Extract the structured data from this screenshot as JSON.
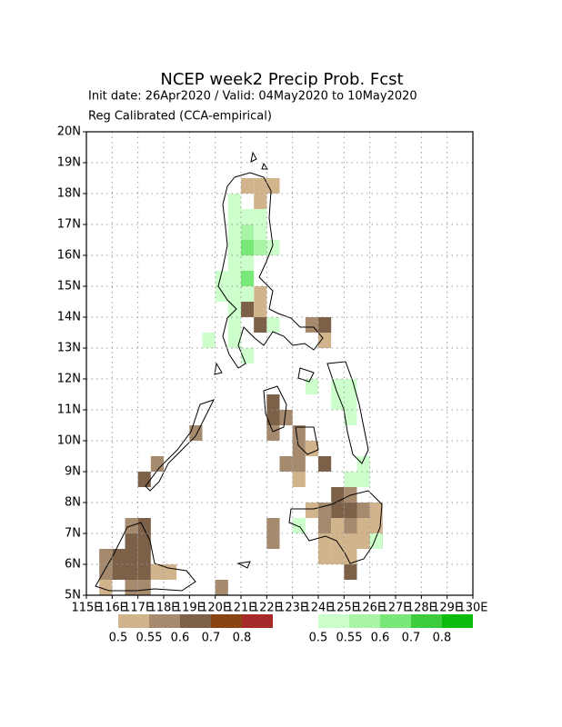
{
  "chart_data": {
    "type": "grid-map",
    "title": "NCEP week2 Precip Prob. Fcst",
    "subtitle": "Init date: 26Apr2020 / Valid: 04May2020 to 10May2020",
    "subtitle2": "Reg Calibrated (CCA-empirical)",
    "xlim": [
      115,
      130
    ],
    "ylim": [
      5,
      20
    ],
    "grid": true,
    "cell_size": 0.5,
    "xticks": [
      {
        "value": 115,
        "label": "115E"
      },
      {
        "value": 116,
        "label": "116E"
      },
      {
        "value": 117,
        "label": "117E"
      },
      {
        "value": 118,
        "label": "118E"
      },
      {
        "value": 119,
        "label": "119E"
      },
      {
        "value": 120,
        "label": "120E"
      },
      {
        "value": 121,
        "label": "121E"
      },
      {
        "value": 122,
        "label": "122E"
      },
      {
        "value": 123,
        "label": "123E"
      },
      {
        "value": 124,
        "label": "124E"
      },
      {
        "value": 125,
        "label": "125E"
      },
      {
        "value": 126,
        "label": "126E"
      },
      {
        "value": 127,
        "label": "127E"
      },
      {
        "value": 128,
        "label": "128E"
      },
      {
        "value": 129,
        "label": "129E"
      },
      {
        "value": 130,
        "label": "130E"
      }
    ],
    "yticks": [
      {
        "value": 5,
        "label": "5N"
      },
      {
        "value": 6,
        "label": "6N"
      },
      {
        "value": 7,
        "label": "7N"
      },
      {
        "value": 8,
        "label": "8N"
      },
      {
        "value": 9,
        "label": "9N"
      },
      {
        "value": 10,
        "label": "10N"
      },
      {
        "value": 11,
        "label": "11N"
      },
      {
        "value": 12,
        "label": "12N"
      },
      {
        "value": 13,
        "label": "13N"
      },
      {
        "value": 14,
        "label": "14N"
      },
      {
        "value": 15,
        "label": "15N"
      },
      {
        "value": 16,
        "label": "16N"
      },
      {
        "value": 17,
        "label": "17N"
      },
      {
        "value": 18,
        "label": "18N"
      },
      {
        "value": 19,
        "label": "19N"
      },
      {
        "value": 20,
        "label": "20N"
      }
    ],
    "below": {
      "levels": [
        0.5,
        0.55,
        0.6,
        0.7,
        0.8
      ],
      "colors": [
        "#d2b48c",
        "#a58a6e",
        "#7d6048",
        "#8b4513",
        "#a52a2a"
      ],
      "cells": [
        [
          121,
          18,
          0.5
        ],
        [
          121.5,
          18,
          0.5
        ],
        [
          122,
          18,
          0.5
        ],
        [
          121.5,
          17.5,
          0.5
        ],
        [
          121.5,
          14.5,
          0.5
        ],
        [
          121,
          14,
          0.6
        ],
        [
          121.5,
          14,
          0.5
        ],
        [
          121.5,
          13.5,
          0.6
        ],
        [
          123.5,
          13.5,
          0.55
        ],
        [
          124,
          13.5,
          0.6
        ],
        [
          124,
          13,
          0.5
        ],
        [
          122,
          11,
          0.6
        ],
        [
          122,
          10.5,
          0.6
        ],
        [
          122.5,
          10.5,
          0.55
        ],
        [
          122,
          10,
          0.55
        ],
        [
          123,
          10,
          0.55
        ],
        [
          123,
          9.5,
          0.55
        ],
        [
          123.5,
          9.5,
          0.5
        ],
        [
          122.5,
          9,
          0.55
        ],
        [
          123,
          9,
          0.55
        ],
        [
          124,
          9,
          0.6
        ],
        [
          123,
          8.5,
          0.5
        ],
        [
          119,
          10,
          0.55
        ],
        [
          117.5,
          9,
          0.55
        ],
        [
          117,
          8.5,
          0.6
        ],
        [
          124.5,
          8,
          0.6
        ],
        [
          125,
          8,
          0.55
        ],
        [
          123.5,
          7.5,
          0.5
        ],
        [
          124,
          7.5,
          0.55
        ],
        [
          124.5,
          7.5,
          0.6
        ],
        [
          125,
          7.5,
          0.6
        ],
        [
          125.5,
          7.5,
          0.55
        ],
        [
          126,
          7.5,
          0.5
        ],
        [
          122,
          7,
          0.55
        ],
        [
          124,
          7,
          0.55
        ],
        [
          124.5,
          7,
          0.5
        ],
        [
          125,
          7,
          0.55
        ],
        [
          125.5,
          7,
          0.5
        ],
        [
          126,
          7,
          0.5
        ],
        [
          122,
          6.5,
          0.55
        ],
        [
          124,
          6.5,
          0.5
        ],
        [
          124.5,
          6.5,
          0.5
        ],
        [
          125,
          6.5,
          0.5
        ],
        [
          125.5,
          6.5,
          0.5
        ],
        [
          126,
          6.5,
          0.6
        ],
        [
          124,
          6,
          0.5
        ],
        [
          124.5,
          6,
          0.5
        ],
        [
          125,
          6,
          0.5
        ],
        [
          125,
          5.5,
          0.6
        ],
        [
          116.5,
          7,
          0.55
        ],
        [
          117,
          7,
          0.6
        ],
        [
          116.5,
          6.5,
          0.6
        ],
        [
          117,
          6.5,
          0.6
        ],
        [
          115.5,
          6,
          0.55
        ],
        [
          116,
          6,
          0.6
        ],
        [
          116.5,
          6,
          0.6
        ],
        [
          117,
          6,
          0.6
        ],
        [
          115.5,
          5.5,
          0.55
        ],
        [
          116,
          5.5,
          0.6
        ],
        [
          116.5,
          5.5,
          0.6
        ],
        [
          117,
          5.5,
          0.6
        ],
        [
          117.5,
          5.5,
          0.5
        ],
        [
          118,
          5.5,
          0.5
        ],
        [
          115.5,
          5,
          0.5
        ],
        [
          116.5,
          5,
          0.55
        ],
        [
          117,
          5,
          0.55
        ],
        [
          120,
          5,
          0.55
        ]
      ]
    },
    "above": {
      "levels": [
        0.5,
        0.55,
        0.6,
        0.7,
        0.8
      ],
      "colors": [
        "#ccffcc",
        "#a8f5a8",
        "#78e878",
        "#3ccc3c",
        "#0cbc0c"
      ],
      "cells": [
        [
          120.5,
          17.5,
          0.5
        ],
        [
          120.5,
          17,
          0.5
        ],
        [
          121,
          17,
          0.5
        ],
        [
          121.5,
          17,
          0.5
        ],
        [
          120.5,
          16.5,
          0.5
        ],
        [
          121,
          16.5,
          0.55
        ],
        [
          121.5,
          16.5,
          0.5
        ],
        [
          120.5,
          16,
          0.5
        ],
        [
          121,
          16,
          0.6
        ],
        [
          121.5,
          16,
          0.55
        ],
        [
          122,
          16,
          0.5
        ],
        [
          120.5,
          15.5,
          0.5
        ],
        [
          121,
          15.5,
          0.5
        ],
        [
          120,
          15,
          0.5
        ],
        [
          120.5,
          15,
          0.5
        ],
        [
          121,
          15,
          0.6
        ],
        [
          120,
          14.5,
          0.5
        ],
        [
          120.5,
          14.5,
          0.5
        ],
        [
          121,
          14.5,
          0.5
        ],
        [
          120.5,
          14,
          0.5
        ],
        [
          121,
          14.5,
          0.5
        ],
        [
          120.5,
          13.5,
          0.5
        ],
        [
          122,
          13.5,
          0.5
        ],
        [
          119.5,
          13,
          0.5
        ],
        [
          120.5,
          13,
          0.5
        ],
        [
          121,
          12.5,
          0.5
        ],
        [
          123.5,
          11.5,
          0.5
        ],
        [
          124.5,
          11.5,
          0.5
        ],
        [
          125,
          11.5,
          0.5
        ],
        [
          124.5,
          11,
          0.5
        ],
        [
          125,
          11,
          0.5
        ],
        [
          125,
          10.5,
          0.5
        ],
        [
          125.5,
          9,
          0.5
        ],
        [
          125,
          8.5,
          0.5
        ],
        [
          125.5,
          8.5,
          0.5
        ],
        [
          123,
          7,
          0.5
        ],
        [
          126,
          6.5,
          0.5
        ]
      ]
    },
    "below_labels": [
      "0.5",
      "0.55",
      "0.6",
      "0.7",
      "0.8"
    ],
    "above_labels": [
      "0.5",
      "0.55",
      "0.6",
      "0.7",
      "0.8"
    ]
  }
}
